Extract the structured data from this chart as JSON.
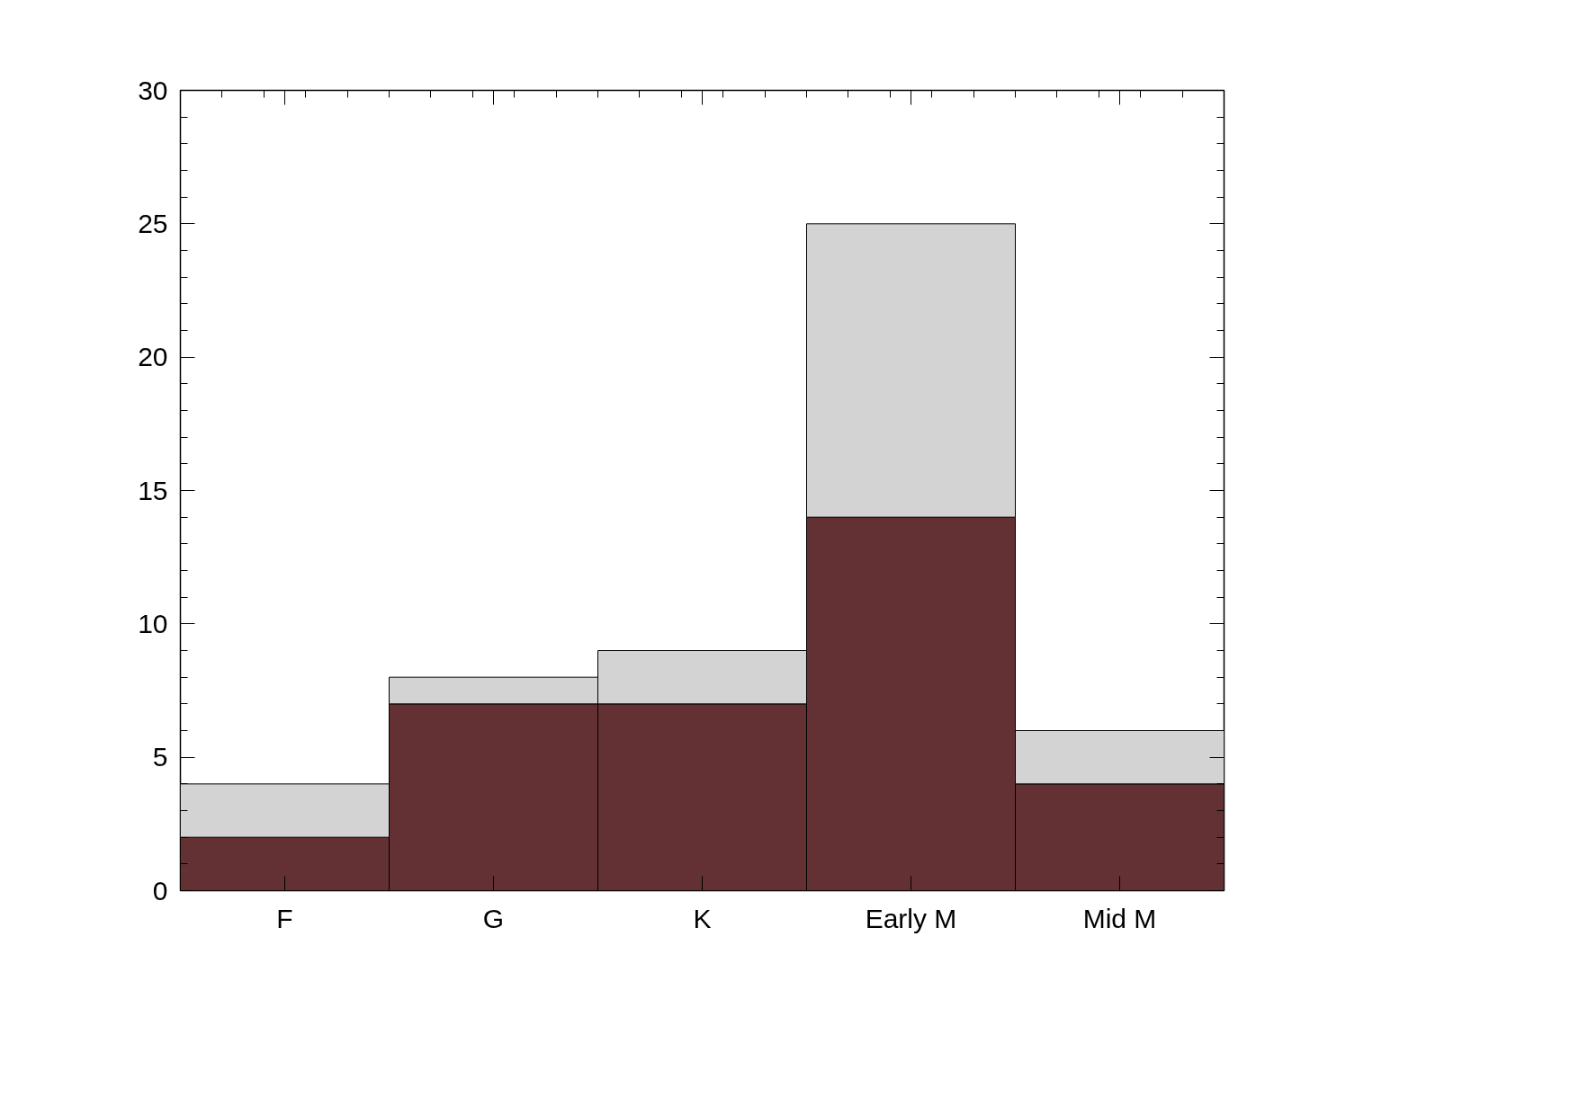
{
  "chart_data": {
    "type": "bar",
    "stacked": true,
    "categories": [
      "F",
      "G",
      "K",
      "Early M",
      "Mid M"
    ],
    "series": [
      {
        "color": "#633033",
        "values": [
          2,
          7,
          7,
          14,
          4
        ]
      },
      {
        "color": "#d3d3d3",
        "values": [
          2,
          1,
          2,
          11,
          2
        ]
      }
    ],
    "ylim": [
      0,
      30
    ],
    "yticks": [
      0,
      5,
      10,
      15,
      20,
      25,
      30
    ],
    "grid": false
  }
}
